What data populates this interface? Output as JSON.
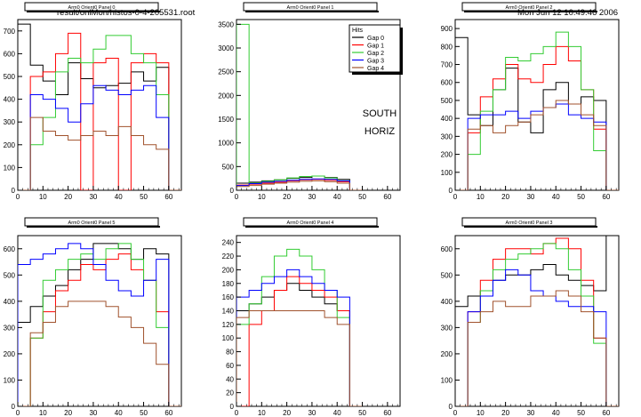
{
  "header": {
    "file": "result/onlMon/histos-0-4-205531.root",
    "date": "Mon Jun 12 10:49:46 2006"
  },
  "legend": {
    "title": "Hits",
    "entries": [
      "Gap 0",
      "Gap 1",
      "Gap 2",
      "Gap 3",
      "Gap 4"
    ]
  },
  "annotation": {
    "line1": "SOUTH",
    "line2": "HORIZ"
  },
  "colors": {
    "Gap 0": "#000000",
    "Gap 1": "#ff0000",
    "Gap 2": "#33cc33",
    "Gap 3": "#0000ff",
    "Gap 4": "#a0522d"
  },
  "chart_data": [
    {
      "type": "line",
      "title": "Arm0 Orient0 Panel 0",
      "xlim": [
        0,
        65
      ],
      "ylim": [
        0,
        750
      ],
      "xticks": [
        0,
        10,
        20,
        30,
        40,
        50,
        60
      ],
      "yticks": [
        0,
        100,
        200,
        300,
        400,
        500,
        600,
        700
      ],
      "x": [
        0,
        5,
        10,
        15,
        20,
        25,
        30,
        35,
        40,
        45,
        50,
        55,
        60
      ],
      "series": [
        {
          "name": "Gap 0",
          "values": [
            730,
            550,
            480,
            420,
            560,
            490,
            450,
            460,
            470,
            520,
            480,
            540,
            0
          ]
        },
        {
          "name": "Gap 1",
          "values": [
            0,
            500,
            520,
            600,
            690,
            0,
            560,
            580,
            0,
            560,
            600,
            560,
            0
          ]
        },
        {
          "name": "Gap 2",
          "values": [
            0,
            200,
            320,
            520,
            580,
            560,
            620,
            680,
            680,
            600,
            560,
            420,
            0
          ]
        },
        {
          "name": "Gap 3",
          "values": [
            0,
            420,
            400,
            360,
            300,
            380,
            460,
            440,
            420,
            440,
            460,
            320,
            0
          ]
        },
        {
          "name": "Gap 4",
          "values": [
            0,
            320,
            260,
            240,
            220,
            240,
            260,
            240,
            280,
            240,
            200,
            180,
            0
          ]
        }
      ]
    },
    {
      "type": "line",
      "title": "Arm0 Orient0 Panel 1",
      "xlim": [
        0,
        65
      ],
      "ylim": [
        0,
        3600
      ],
      "xticks": [
        0,
        10,
        20,
        30,
        40,
        50,
        60
      ],
      "yticks": [
        0,
        500,
        1000,
        1500,
        2000,
        2500,
        3000,
        3500
      ],
      "x": [
        0,
        5,
        10,
        15,
        20,
        25,
        30,
        35,
        40,
        45
      ],
      "series": [
        {
          "name": "Gap 0",
          "values": [
            150,
            170,
            200,
            220,
            250,
            270,
            300,
            270,
            230,
            0
          ]
        },
        {
          "name": "Gap 1",
          "values": [
            110,
            130,
            150,
            170,
            200,
            220,
            230,
            210,
            180,
            0
          ]
        },
        {
          "name": "Gap 2",
          "values": [
            3500,
            150,
            190,
            220,
            260,
            290,
            300,
            260,
            200,
            0
          ]
        },
        {
          "name": "Gap 3",
          "values": [
            100,
            140,
            170,
            190,
            210,
            230,
            240,
            230,
            200,
            0
          ]
        },
        {
          "name": "Gap 4",
          "values": [
            80,
            100,
            130,
            150,
            170,
            190,
            200,
            180,
            150,
            0
          ]
        }
      ]
    },
    {
      "type": "line",
      "title": "Arm0 Orient0 Panel 2",
      "xlim": [
        0,
        65
      ],
      "ylim": [
        0,
        950
      ],
      "xticks": [
        0,
        10,
        20,
        30,
        40,
        50,
        60
      ],
      "yticks": [
        0,
        100,
        200,
        300,
        400,
        500,
        600,
        700,
        800,
        900
      ],
      "x": [
        0,
        5,
        10,
        15,
        20,
        25,
        30,
        35,
        40,
        45,
        50,
        55,
        60
      ],
      "series": [
        {
          "name": "Gap 0",
          "values": [
            850,
            420,
            360,
            560,
            680,
            380,
            320,
            560,
            600,
            480,
            520,
            500,
            0
          ]
        },
        {
          "name": "Gap 1",
          "values": [
            0,
            320,
            520,
            620,
            700,
            620,
            600,
            700,
            800,
            720,
            560,
            340,
            0
          ]
        },
        {
          "name": "Gap 2",
          "values": [
            0,
            200,
            440,
            560,
            740,
            720,
            760,
            800,
            880,
            800,
            560,
            220,
            0
          ]
        },
        {
          "name": "Gap 3",
          "values": [
            0,
            400,
            420,
            420,
            440,
            400,
            440,
            460,
            480,
            420,
            400,
            380,
            0
          ]
        },
        {
          "name": "Gap 4",
          "values": [
            0,
            340,
            360,
            320,
            360,
            380,
            420,
            460,
            500,
            480,
            420,
            360,
            0
          ]
        }
      ]
    },
    {
      "type": "line",
      "title": "Arm0 Orient0 Panel 5",
      "xlim": [
        0,
        65
      ],
      "ylim": [
        0,
        650
      ],
      "xticks": [
        0,
        10,
        20,
        30,
        40,
        50,
        60
      ],
      "yticks": [
        0,
        100,
        200,
        300,
        400,
        500,
        600
      ],
      "x": [
        0,
        5,
        10,
        15,
        20,
        25,
        30,
        35,
        40,
        45,
        50,
        55,
        60
      ],
      "series": [
        {
          "name": "Gap 0",
          "values": [
            320,
            380,
            420,
            460,
            520,
            560,
            620,
            620,
            600,
            560,
            600,
            580,
            0
          ]
        },
        {
          "name": "Gap 1",
          "values": [
            0,
            260,
            360,
            440,
            480,
            540,
            520,
            560,
            580,
            520,
            480,
            360,
            0
          ]
        },
        {
          "name": "Gap 2",
          "values": [
            0,
            260,
            480,
            520,
            560,
            580,
            560,
            600,
            620,
            560,
            480,
            300,
            0
          ]
        },
        {
          "name": "Gap 3",
          "values": [
            540,
            560,
            580,
            600,
            620,
            600,
            540,
            480,
            440,
            420,
            480,
            560,
            0
          ]
        },
        {
          "name": "Gap 4",
          "values": [
            0,
            280,
            320,
            380,
            400,
            400,
            400,
            380,
            340,
            300,
            240,
            160,
            0
          ]
        }
      ]
    },
    {
      "type": "line",
      "title": "Arm0 Orient0 Panel 4",
      "xlim": [
        0,
        65
      ],
      "ylim": [
        0,
        250
      ],
      "xticks": [
        0,
        10,
        20,
        30,
        40,
        50,
        60
      ],
      "yticks": [
        0,
        20,
        40,
        60,
        80,
        100,
        120,
        140,
        160,
        180,
        200,
        220,
        240
      ],
      "x": [
        0,
        5,
        10,
        15,
        20,
        25,
        30,
        35,
        40,
        45
      ],
      "series": [
        {
          "name": "Gap 0",
          "values": [
            140,
            150,
            160,
            170,
            180,
            170,
            160,
            150,
            140,
            0
          ]
        },
        {
          "name": "Gap 1",
          "values": [
            0,
            120,
            140,
            170,
            190,
            180,
            170,
            160,
            140,
            0
          ]
        },
        {
          "name": "Gap 2",
          "values": [
            120,
            150,
            190,
            220,
            230,
            220,
            200,
            170,
            130,
            0
          ]
        },
        {
          "name": "Gap 3",
          "values": [
            160,
            170,
            180,
            190,
            200,
            190,
            180,
            170,
            160,
            0
          ]
        },
        {
          "name": "Gap 4",
          "values": [
            130,
            140,
            140,
            140,
            140,
            140,
            140,
            130,
            120,
            0
          ]
        }
      ]
    },
    {
      "type": "line",
      "title": "Arm0 Orient0 Panel 3",
      "xlim": [
        0,
        65
      ],
      "ylim": [
        0,
        650
      ],
      "xticks": [
        0,
        10,
        20,
        30,
        40,
        50,
        60
      ],
      "yticks": [
        0,
        100,
        200,
        300,
        400,
        500,
        600
      ],
      "x": [
        0,
        5,
        10,
        15,
        20,
        25,
        30,
        35,
        40,
        45,
        50,
        55,
        60
      ],
      "series": [
        {
          "name": "Gap 0",
          "values": [
            380,
            420,
            440,
            480,
            500,
            500,
            520,
            540,
            500,
            480,
            460,
            440,
            700
          ]
        },
        {
          "name": "Gap 1",
          "values": [
            0,
            360,
            480,
            560,
            600,
            600,
            580,
            620,
            640,
            600,
            480,
            260,
            0
          ]
        },
        {
          "name": "Gap 2",
          "values": [
            0,
            320,
            440,
            520,
            560,
            580,
            600,
            620,
            600,
            520,
            420,
            240,
            0
          ]
        },
        {
          "name": "Gap 3",
          "values": [
            0,
            360,
            420,
            480,
            520,
            500,
            440,
            420,
            400,
            380,
            380,
            360,
            0
          ]
        },
        {
          "name": "Gap 4",
          "values": [
            0,
            320,
            360,
            400,
            380,
            380,
            420,
            420,
            440,
            420,
            360,
            260,
            0
          ]
        }
      ]
    }
  ]
}
